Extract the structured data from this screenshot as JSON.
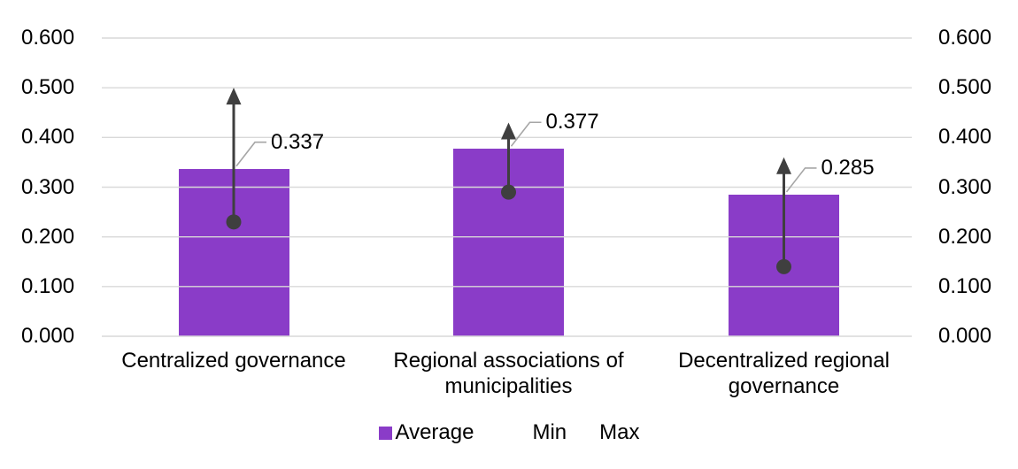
{
  "chart_data": {
    "type": "bar",
    "title": "",
    "xlabel": "",
    "ylabel": "",
    "categories": [
      "Centralized governance",
      "Regional associations of municipalities",
      "Decentralized regional governance"
    ],
    "series": [
      {
        "name": "Average",
        "marker": "bar",
        "values": [
          0.337,
          0.377,
          0.285
        ]
      },
      {
        "name": "Min",
        "marker": "dot",
        "values": [
          0.23,
          0.29,
          0.14
        ]
      },
      {
        "name": "Max",
        "marker": "arrow-up",
        "values": [
          0.5,
          0.43,
          0.36
        ]
      }
    ],
    "data_labels": [
      "0.337",
      "0.377",
      "0.285"
    ],
    "y_ticks": [
      "0.000",
      "0.100",
      "0.200",
      "0.300",
      "0.400",
      "0.500",
      "0.600"
    ],
    "ylim": [
      0,
      0.6
    ],
    "y_axis_sides": "both",
    "grid": true,
    "legend_position": "bottom",
    "legend": [
      {
        "label": "Average",
        "swatch": true
      },
      {
        "label": "Min",
        "swatch": false
      },
      {
        "label": "Max",
        "swatch": false
      }
    ],
    "colors": {
      "bar": "#8A3CC8",
      "error_marks": "#3F3F3F",
      "leader_line": "#A6A6A6",
      "gridline": "#D9D9D9",
      "text": "#000000",
      "background": "#FFFFFF"
    }
  }
}
